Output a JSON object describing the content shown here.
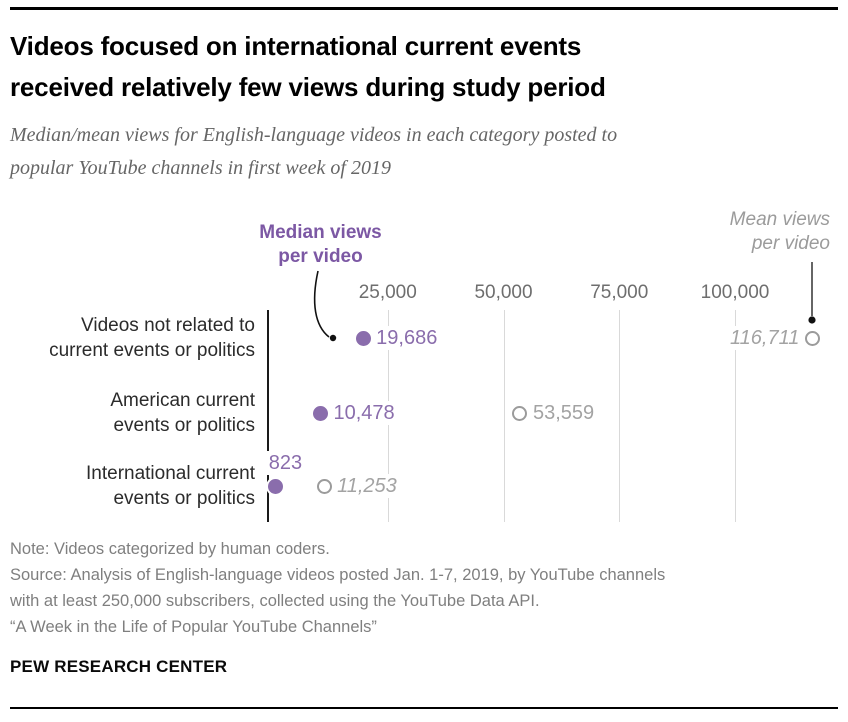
{
  "header": {
    "title": "Videos focused on international current events\nreceived relatively few views during study period",
    "subtitle": "Median/mean views for English-language videos in each category posted to\npopular YouTube channels in first week of 2019"
  },
  "chart_data": {
    "type": "scatter",
    "title": "Median/mean views for English-language videos in each category posted to popular YouTube channels in first week of 2019",
    "categories": [
      "Videos not related to\ncurrent events or politics",
      "American current\nevents or politics",
      "International current\nevents or politics"
    ],
    "series": [
      {
        "name": "Median views per video",
        "values": [
          19686,
          10478,
          823
        ],
        "labels": [
          "19,686",
          "10,478",
          "823"
        ]
      },
      {
        "name": "Mean views per video",
        "values": [
          116711,
          53559,
          11253
        ],
        "labels": [
          "116,711",
          "53,559",
          "11,253"
        ]
      }
    ],
    "x_ticks": {
      "values": [
        25000,
        50000,
        75000,
        100000
      ],
      "labels": [
        "25,000",
        "50,000",
        "75,000",
        "100,000"
      ]
    },
    "xlim": [
      0,
      125000
    ],
    "grid": "vertical",
    "legend_position": "top-annotations",
    "annotations": {
      "median": "Median views\nper video",
      "mean": "Mean views\nper video"
    },
    "hints": {
      "median_label_pos": [
        "right",
        "right",
        "above"
      ],
      "mean_label_side": [
        "left",
        "right",
        "right"
      ],
      "mean_label_italic": [
        true,
        false,
        true
      ]
    },
    "colors": {
      "median_dot": "#8a6dac",
      "median_text": "#8a6dac",
      "median_header": "#7c58a4",
      "mean_ring": "#9b9b9b",
      "mean_text": "#a3a3a3",
      "grid": "#d9d9d9",
      "axis": "#1a1a1a"
    }
  },
  "footer": {
    "note": "Note: Videos categorized by human coders.\nSource: Analysis of English-language videos posted Jan. 1-7, 2019, by YouTube channels\nwith at least 250,000 subscribers, collected using the YouTube Data API.\n“A Week in the Life of Popular YouTube Channels”",
    "brand": "PEW RESEARCH CENTER"
  }
}
